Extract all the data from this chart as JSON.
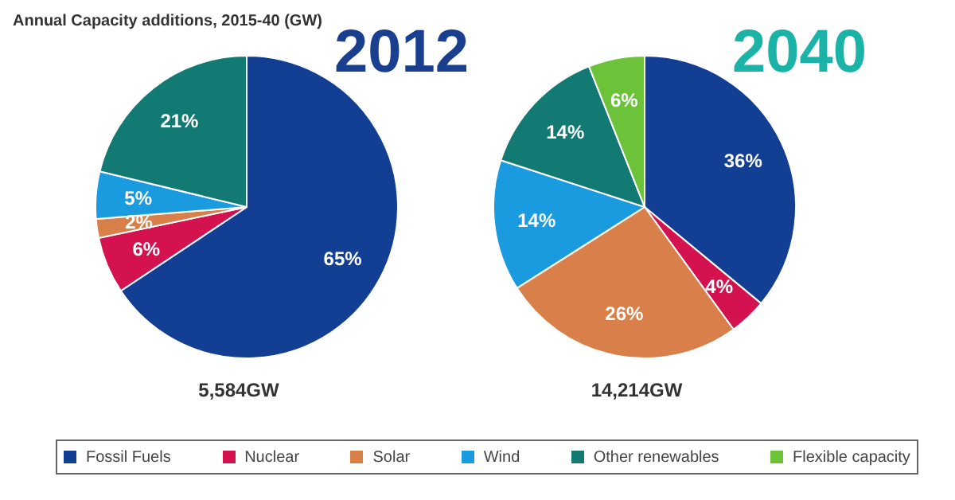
{
  "chart_data": [
    {
      "type": "pie",
      "title": "2012",
      "annotations": [
        "Annual Capacity additions, 2015-40 (GW)",
        "5,584GW"
      ],
      "categories": [
        null,
        null,
        null,
        null,
        null
      ],
      "values": [
        65,
        6,
        2,
        5,
        21
      ],
      "value_labels": [
        "65%",
        "6%",
        "2%",
        "5%",
        "21%"
      ],
      "colors": [
        "#123f94",
        "#d3124f",
        "#d9804a",
        "#1a9be0",
        "#137a73"
      ]
    },
    {
      "type": "pie",
      "title": "2040",
      "annotations": [
        "14,214GW"
      ],
      "categories": [
        "Fossil Fuels",
        "Nuclear",
        "Solar",
        "Wind",
        "Other renewables",
        "Flexible capacity"
      ],
      "values": [
        36,
        4,
        26,
        14,
        14,
        6
      ],
      "value_labels": [
        "36%",
        "4%",
        "26%",
        "14%",
        "14%",
        "6%"
      ],
      "colors": [
        "#123f94",
        "#d3124f",
        "#d9804a",
        "#1a9be0",
        "#137a73",
        "#6cc33a"
      ],
      "legend": "bottom"
    }
  ]
}
